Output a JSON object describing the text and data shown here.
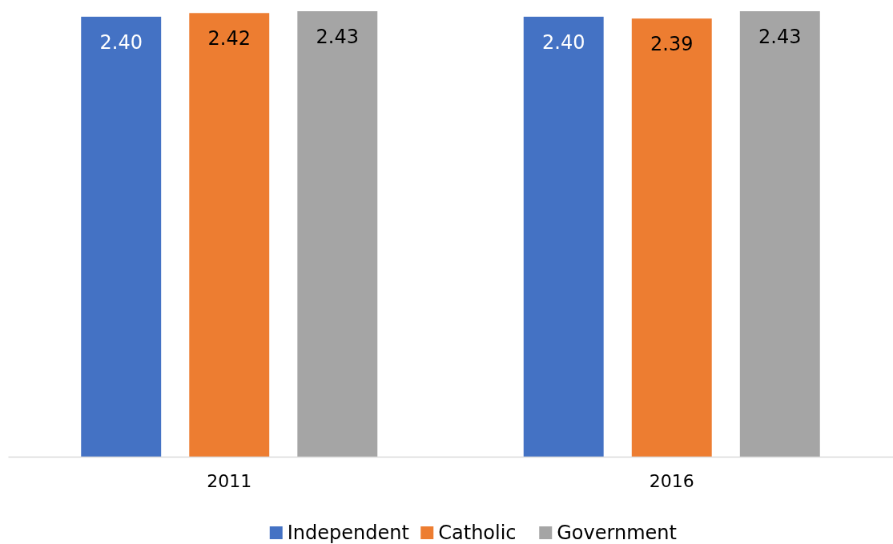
{
  "chart_data": {
    "type": "bar",
    "categories": [
      "2011",
      "2016"
    ],
    "series": [
      {
        "name": "Independent",
        "color": "#4472c4",
        "values": [
          2.4,
          2.4
        ],
        "value_labels": [
          "2.40",
          "2.40"
        ]
      },
      {
        "name": "Catholic",
        "color": "#ed7d31",
        "values": [
          2.42,
          2.39
        ],
        "value_labels": [
          "2.42",
          "2.39"
        ]
      },
      {
        "name": "Government",
        "color": "#a5a5a5",
        "values": [
          2.43,
          2.43
        ],
        "value_labels": [
          "2.43",
          "2.43"
        ]
      }
    ],
    "legend": "bottom"
  }
}
